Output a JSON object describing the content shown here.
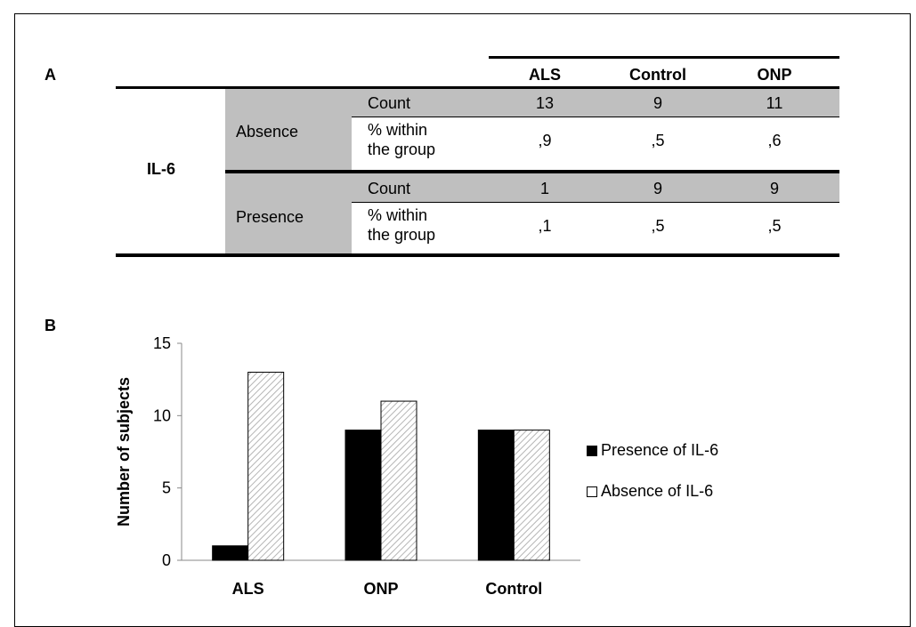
{
  "panel_a_label": "A",
  "panel_b_label": "B",
  "table": {
    "columns": [
      "ALS",
      "Control",
      "ONP"
    ],
    "variable": "IL-6",
    "groups": [
      {
        "label": "Absence",
        "rows": [
          {
            "stat": "Count",
            "values": [
              "13",
              "9",
              "11"
            ]
          },
          {
            "stat_line1": "% within",
            "stat_line2": "the group",
            "values": [
              ",9",
              ",5",
              ",6"
            ]
          }
        ]
      },
      {
        "label": "Presence",
        "rows": [
          {
            "stat": "Count",
            "values": [
              "1",
              "9",
              "9"
            ]
          },
          {
            "stat_line1": "% within",
            "stat_line2": "the group",
            "values": [
              ",1",
              ",5",
              ",5"
            ]
          }
        ]
      }
    ]
  },
  "chart_data": {
    "type": "bar",
    "categories": [
      "ALS",
      "ONP",
      "Control"
    ],
    "series": [
      {
        "name": "Presence of IL-6",
        "values": [
          1,
          9,
          9
        ],
        "color": "#000000"
      },
      {
        "name": "Absence of IL-6",
        "values": [
          13,
          11,
          9
        ],
        "color": "#ffffff",
        "pattern": "diagonal-hatch"
      }
    ],
    "ylabel": "Number of subjects",
    "xlabel": "",
    "ylim": [
      0,
      15
    ],
    "yticks": [
      0,
      5,
      10,
      15
    ],
    "legend_position": "right",
    "grid": false
  }
}
